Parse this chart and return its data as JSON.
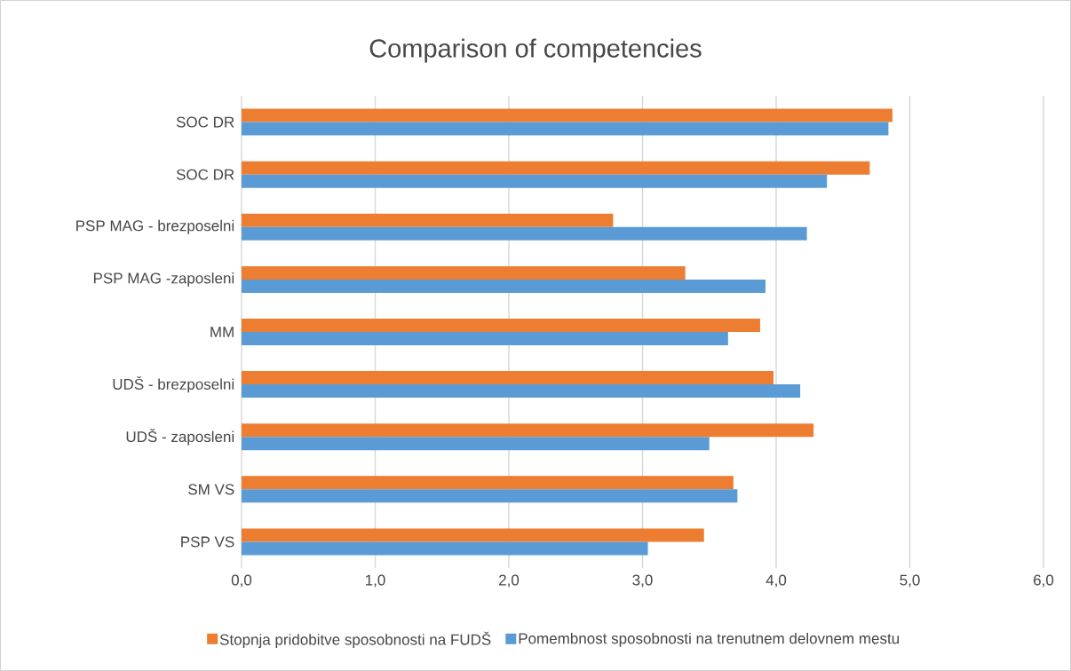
{
  "chart_data": {
    "type": "bar",
    "orientation": "horizontal",
    "title": "Comparison of competencies",
    "categories": [
      "SOC DR",
      "SOC DR",
      "PSP MAG - brezposelni",
      "PSP MAG  -zaposleni",
      "MM",
      "UDŠ - brezposelni",
      "UDŠ - zaposleni",
      "SM VS",
      "PSP VS"
    ],
    "series": [
      {
        "name": "Stopnja pridobitve sposobnosti na FUDŠ",
        "color": "#ed7d31",
        "values": [
          4.87,
          4.7,
          2.78,
          3.32,
          3.88,
          3.98,
          4.28,
          3.68,
          3.46
        ]
      },
      {
        "name": "Pomembnost sposobnosti na trenutnem delovnem mestu",
        "color": "#5b9bd5",
        "values": [
          4.84,
          4.38,
          4.23,
          3.92,
          3.64,
          4.18,
          3.5,
          3.71,
          3.04
        ]
      }
    ],
    "xlim": [
      0,
      6
    ],
    "xticks": [
      {
        "value": 0,
        "label": "0,0"
      },
      {
        "value": 1,
        "label": "1,0"
      },
      {
        "value": 2,
        "label": "2,0"
      },
      {
        "value": 3,
        "label": "3,0"
      },
      {
        "value": 4,
        "label": "4,0"
      },
      {
        "value": 5,
        "label": "5,0"
      },
      {
        "value": 6,
        "label": "6,0"
      }
    ],
    "grid": "x",
    "legend": "bottom"
  }
}
